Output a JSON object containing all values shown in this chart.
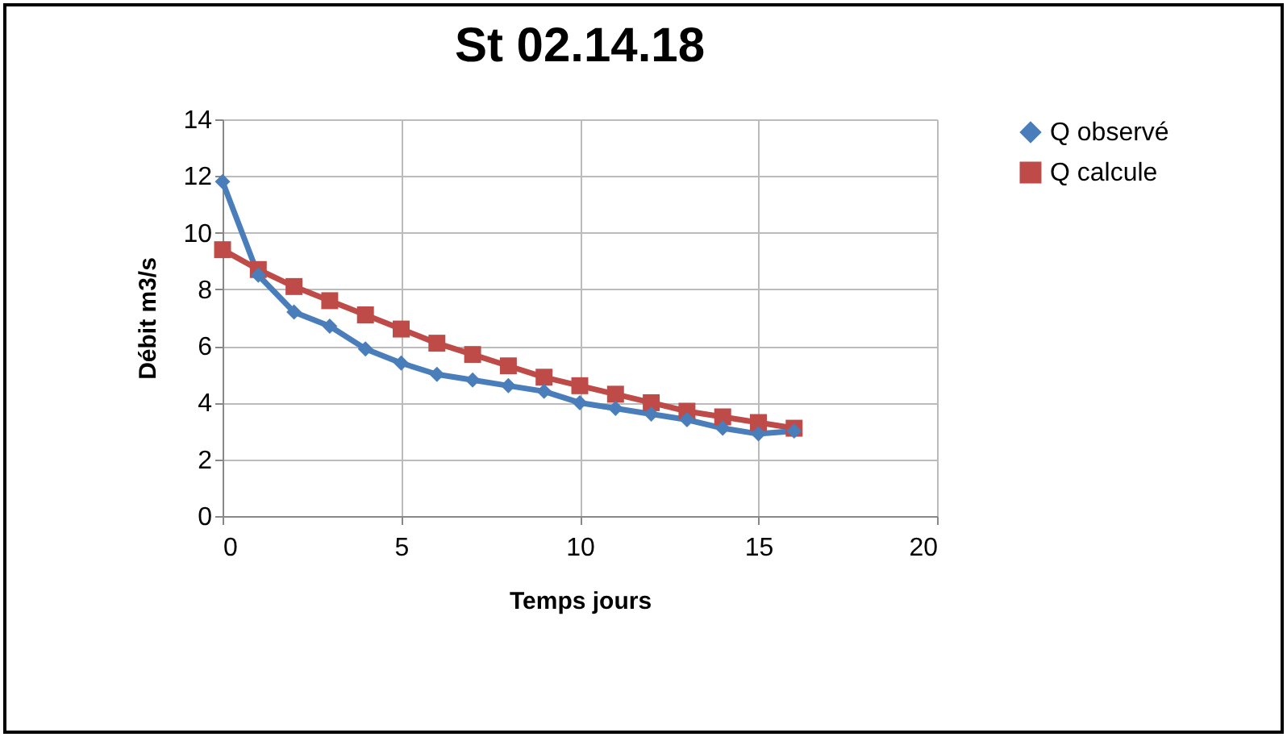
{
  "chart_data": {
    "type": "line",
    "title": "St 02.14.18",
    "xlabel": "Temps jours",
    "ylabel": "Débit m3/s",
    "x": [
      0,
      1,
      2,
      3,
      4,
      5,
      6,
      7,
      8,
      9,
      10,
      11,
      12,
      13,
      14,
      15,
      16
    ],
    "series": [
      {
        "name": "Q observé",
        "color": "#4a7ebb",
        "marker": "diamond",
        "values": [
          11.8,
          8.5,
          7.2,
          6.7,
          5.9,
          5.4,
          5.0,
          4.8,
          4.6,
          4.4,
          4.0,
          3.8,
          3.6,
          3.4,
          3.1,
          2.9,
          3.0
        ]
      },
      {
        "name": "Q calcule",
        "color": "#be4b48",
        "marker": "square",
        "values": [
          9.4,
          8.7,
          8.1,
          7.6,
          7.1,
          6.6,
          6.1,
          5.7,
          5.3,
          4.9,
          4.6,
          4.3,
          4.0,
          3.7,
          3.5,
          3.3,
          3.1
        ]
      }
    ],
    "xlim": [
      0,
      20
    ],
    "xticks": [
      0,
      5,
      10,
      15,
      20
    ],
    "ylim": [
      0,
      14
    ],
    "yticks": [
      0,
      2,
      4,
      6,
      8,
      10,
      12,
      14
    ],
    "grid": true,
    "legend": "right"
  }
}
